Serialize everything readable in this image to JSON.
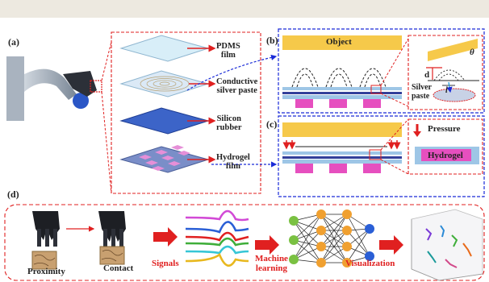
{
  "colors": {
    "red": "#e02020",
    "blue": "#1a2bd8",
    "object": "#f6c94a",
    "magenta": "#e64fbf",
    "bar": "#9ec6e6"
  },
  "panels": {
    "a": "(a)",
    "b": "(b)",
    "c": "(c)",
    "d": "(d)"
  },
  "layers": {
    "pdms": "PDMS\nfilm",
    "silver": "Conductive\nsilver paste",
    "silicon": "Silicon\nrubber",
    "hydrogel": "Hydrogel\nfilm"
  },
  "b": {
    "object": "Object",
    "d": "d",
    "l": "l",
    "theta": "θ",
    "silver": "Silver\npaste"
  },
  "c": {
    "pressure": "Pressure",
    "hydrogel": "Hydrogel"
  },
  "d": {
    "proximity": "Proximity",
    "contact": "Contact",
    "signals": "Signals",
    "ml": "Machine\nlearning",
    "viz": "Visualization"
  }
}
